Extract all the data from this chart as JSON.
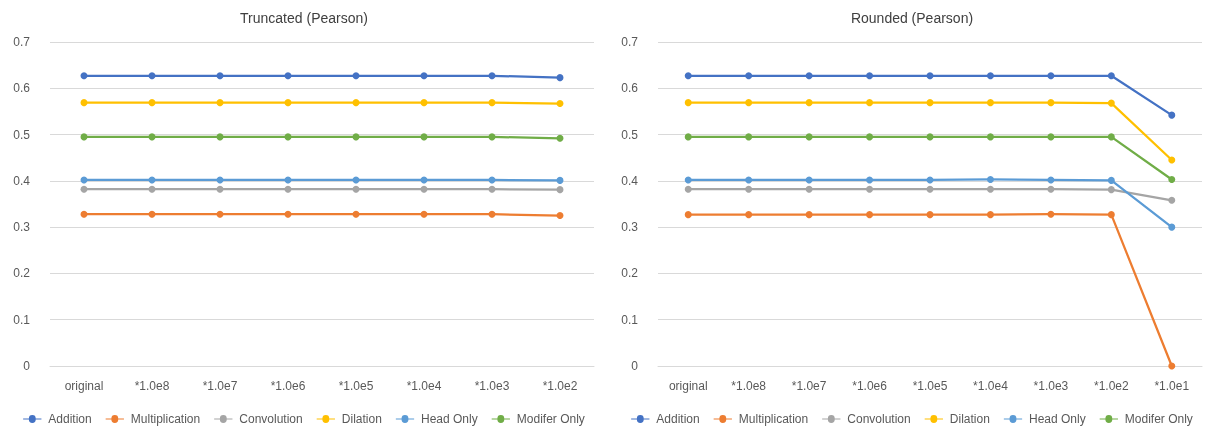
{
  "chart_data": [
    {
      "type": "line",
      "title": "Truncated (Pearson)",
      "categories": [
        "original",
        "*1.0e8",
        "*1.0e7",
        "*1.0e6",
        "*1.0e5",
        "*1.0e4",
        "*1.0e3",
        "*1.0e2"
      ],
      "ylim": [
        0,
        0.7
      ],
      "yticks": [
        0,
        0.1,
        0.2,
        0.3,
        0.4,
        0.5,
        0.6,
        0.7
      ],
      "grid": "y",
      "legend": "bottom",
      "marker": "circle",
      "series": [
        {
          "name": "Addition",
          "color": "#4472c4",
          "values": [
            0.627,
            0.627,
            0.627,
            0.627,
            0.627,
            0.627,
            0.627,
            0.623
          ]
        },
        {
          "name": "Multiplication",
          "color": "#ed7d31",
          "values": [
            0.328,
            0.328,
            0.328,
            0.328,
            0.328,
            0.328,
            0.328,
            0.325
          ]
        },
        {
          "name": "Convolution",
          "color": "#a5a5a5",
          "values": [
            0.382,
            0.382,
            0.382,
            0.382,
            0.382,
            0.382,
            0.382,
            0.381
          ]
        },
        {
          "name": "Dilation",
          "color": "#ffc000",
          "values": [
            0.569,
            0.569,
            0.569,
            0.569,
            0.569,
            0.569,
            0.569,
            0.567
          ]
        },
        {
          "name": "Head Only",
          "color": "#5b9bd5",
          "values": [
            0.402,
            0.402,
            0.402,
            0.402,
            0.402,
            0.402,
            0.402,
            0.401
          ]
        },
        {
          "name": "Modifer Only",
          "color": "#70ad47",
          "values": [
            0.495,
            0.495,
            0.495,
            0.495,
            0.495,
            0.495,
            0.495,
            0.492
          ]
        }
      ]
    },
    {
      "type": "line",
      "title": "Rounded (Pearson)",
      "categories": [
        "original",
        "*1.0e8",
        "*1.0e7",
        "*1.0e6",
        "*1.0e5",
        "*1.0e4",
        "*1.0e3",
        "*1.0e2",
        "*1.0e1"
      ],
      "ylim": [
        0,
        0.7
      ],
      "yticks": [
        0,
        0.1,
        0.2,
        0.3,
        0.4,
        0.5,
        0.6,
        0.7
      ],
      "grid": "y",
      "legend": "bottom",
      "marker": "circle",
      "series": [
        {
          "name": "Addition",
          "color": "#4472c4",
          "values": [
            0.627,
            0.627,
            0.627,
            0.627,
            0.627,
            0.627,
            0.627,
            0.627,
            0.542
          ]
        },
        {
          "name": "Multiplication",
          "color": "#ed7d31",
          "values": [
            0.327,
            0.327,
            0.327,
            0.327,
            0.327,
            0.327,
            0.328,
            0.327,
            0.0
          ]
        },
        {
          "name": "Convolution",
          "color": "#a5a5a5",
          "values": [
            0.382,
            0.382,
            0.382,
            0.382,
            0.382,
            0.382,
            0.382,
            0.381,
            0.358
          ]
        },
        {
          "name": "Dilation",
          "color": "#ffc000",
          "values": [
            0.569,
            0.569,
            0.569,
            0.569,
            0.569,
            0.569,
            0.569,
            0.568,
            0.445
          ]
        },
        {
          "name": "Head Only",
          "color": "#5b9bd5",
          "values": [
            0.402,
            0.402,
            0.402,
            0.402,
            0.402,
            0.403,
            0.402,
            0.401,
            0.3
          ]
        },
        {
          "name": "Modifer Only",
          "color": "#70ad47",
          "values": [
            0.495,
            0.495,
            0.495,
            0.495,
            0.495,
            0.495,
            0.495,
            0.495,
            0.403
          ]
        }
      ]
    }
  ]
}
